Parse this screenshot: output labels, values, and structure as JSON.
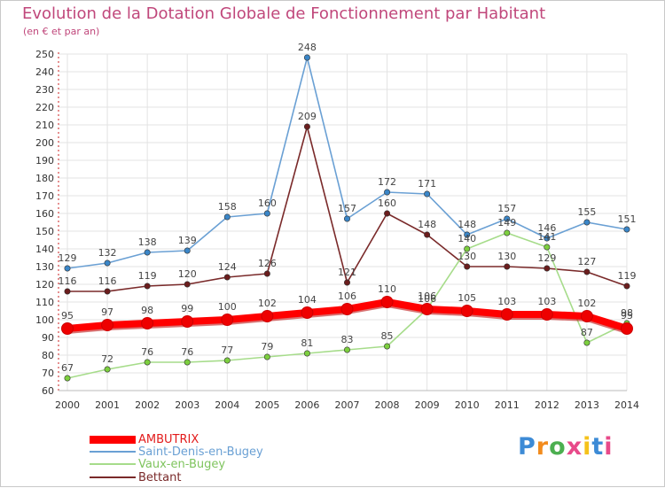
{
  "header": {
    "title": "Evolution de la Dotation Globale de Fonctionnement par Habitant",
    "subtitle": "(en € et par an)"
  },
  "logo": {
    "text": "Proxiti",
    "colors": [
      "#3d8bd6",
      "#f28c1e",
      "#4caf50",
      "#e84a8a",
      "#f5c21b",
      "#3d8bd6",
      "#e84a8a"
    ]
  },
  "chart_data": {
    "type": "line",
    "title": "Evolution de la Dotation Globale de Fonctionnement par Habitant",
    "subtitle": "(en € et par an)",
    "x": [
      "2000",
      "2001",
      "2002",
      "2003",
      "2004",
      "2005",
      "2006",
      "2007",
      "2008",
      "2009",
      "2010",
      "2011",
      "2012",
      "2013",
      "2014"
    ],
    "ylim": [
      60,
      250
    ],
    "yticks": [
      "60",
      "70",
      "80",
      "90",
      "100",
      "110",
      "120",
      "130",
      "140",
      "150",
      "160",
      "170",
      "180",
      "190",
      "200",
      "210",
      "220",
      "230",
      "240",
      "250"
    ],
    "grid": true,
    "legend_position": "bottom-left",
    "series": [
      {
        "name": "Saint-Denis-en-Bugey",
        "color": "#6aa0d4",
        "marker": "#3a86c8",
        "values": [
          129,
          132,
          138,
          139,
          158,
          160,
          248,
          157,
          172,
          171,
          148,
          157,
          146,
          155,
          151
        ]
      },
      {
        "name": "Bettant",
        "color": "#7a2a2a",
        "marker": "#6b1d1d",
        "values": [
          116,
          116,
          119,
          120,
          124,
          126,
          209,
          121,
          160,
          148,
          130,
          130,
          129,
          127,
          119
        ]
      },
      {
        "name": "Vaux-en-Bugey",
        "color": "#a6dc8a",
        "marker": "#7ccf3e",
        "values": [
          67,
          72,
          76,
          76,
          77,
          79,
          81,
          83,
          85,
          106,
          140,
          149,
          141,
          87,
          98
        ]
      },
      {
        "name": "AMBUTRIX",
        "color": "#ff0000",
        "marker": "#ee0000",
        "values": [
          95,
          97,
          98,
          99,
          100,
          102,
          104,
          106,
          110,
          106,
          105,
          103,
          103,
          102,
          95
        ]
      }
    ],
    "legend_order": [
      "AMBUTRIX",
      "Saint-Denis-en-Bugey",
      "Vaux-en-Bugey",
      "Bettant"
    ]
  }
}
